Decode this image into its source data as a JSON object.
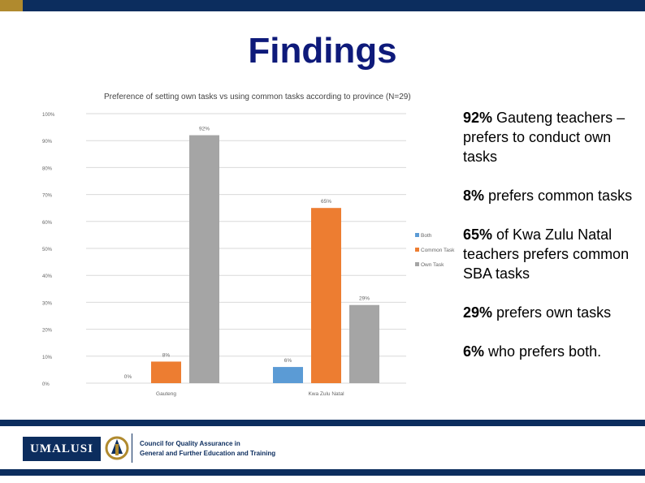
{
  "slide": {
    "title": "Findings",
    "bullets": [
      {
        "bold": "92%",
        "text": " Gauteng teachers – prefers to conduct own tasks"
      },
      {
        "bold": "8%",
        "text": " prefers common tasks"
      },
      {
        "bold": "65%",
        "text": " of Kwa Zulu Natal teachers prefers common SBA tasks"
      },
      {
        "bold": "29%",
        "text": " prefers own tasks"
      },
      {
        "bold": "6%",
        "text": " who prefers both."
      }
    ]
  },
  "footer": {
    "logo_text": "UMALUSI",
    "org_line1": "Council for Quality Assurance in",
    "org_line2": "General and Further Education and Training"
  },
  "colors": {
    "brand_navy": "#0c2d5e",
    "accent_gold": "#b08a2e",
    "title_blue": "#0e1a7a"
  },
  "chart_data": {
    "type": "bar",
    "title": "Preference of setting own tasks vs using common tasks according to province (N=29)",
    "categories": [
      "Gauteng",
      "Kwa Zulu Natal"
    ],
    "series": [
      {
        "name": "Both",
        "values": [
          0,
          6
        ],
        "labels": [
          "0%",
          "6%"
        ],
        "color": "#5b9bd5"
      },
      {
        "name": "Common Task",
        "values": [
          8,
          65
        ],
        "labels": [
          "8%",
          "65%"
        ],
        "color": "#ed7d31"
      },
      {
        "name": "Own Task",
        "values": [
          92,
          29
        ],
        "labels": [
          "92%",
          "29%"
        ],
        "color": "#a5a5a5"
      }
    ],
    "yticks": [
      "0%",
      "10%",
      "20%",
      "30%",
      "40%",
      "50%",
      "60%",
      "70%",
      "80%",
      "90%",
      "100%"
    ],
    "ylim": [
      0,
      100
    ],
    "grid": true,
    "legend": "right"
  }
}
